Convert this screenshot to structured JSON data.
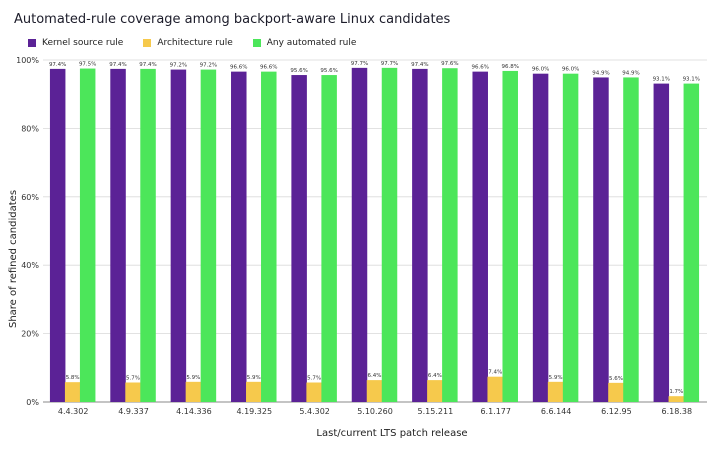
{
  "chart_data": {
    "type": "bar",
    "title": "Automated-rule coverage among backport-aware Linux candidates",
    "xlabel": "Last/current LTS patch release",
    "ylabel": "Share of refined candidates",
    "ylim": [
      0,
      100
    ],
    "yticks": [
      0,
      20,
      40,
      60,
      80,
      100
    ],
    "ytick_labels": [
      "0%",
      "20%",
      "40%",
      "60%",
      "80%",
      "100%"
    ],
    "grid": true,
    "legend_position": "top-left",
    "categories": [
      "4.4.302",
      "4.9.337",
      "4.14.336",
      "4.19.325",
      "5.4.302",
      "5.10.260",
      "5.15.211",
      "6.1.177",
      "6.6.144",
      "6.12.95",
      "6.18.38"
    ],
    "series": [
      {
        "name": "Kernel source rule",
        "color": "#5b2296",
        "values": [
          97.4,
          97.4,
          97.2,
          96.6,
          95.6,
          97.7,
          97.4,
          96.6,
          96.0,
          94.9,
          93.1
        ],
        "labels": [
          "97.4%",
          "97.4%",
          "97.2%",
          "96.6%",
          "95.6%",
          "97.7%",
          "97.4%",
          "96.6%",
          "96.0%",
          "94.9%",
          "93.1%"
        ]
      },
      {
        "name": "Architecture rule",
        "color": "#f6c94c",
        "values": [
          5.8,
          5.7,
          5.9,
          5.9,
          5.7,
          6.4,
          6.4,
          7.4,
          5.9,
          5.6,
          1.7
        ],
        "labels": [
          "5.8%",
          "5.7%",
          "5.9%",
          "5.9%",
          "5.7%",
          "6.4%",
          "6.4%",
          "7.4%",
          "5.9%",
          "5.6%",
          "1.7%"
        ]
      },
      {
        "name": "Any automated rule",
        "color": "#4ce65a",
        "values": [
          97.5,
          97.4,
          97.2,
          96.6,
          95.6,
          97.7,
          97.6,
          96.8,
          96.0,
          94.9,
          93.1
        ],
        "labels": [
          "97.5%",
          "97.4%",
          "97.2%",
          "96.6%",
          "95.6%",
          "97.7%",
          "97.6%",
          "96.8%",
          "96.0%",
          "94.9%",
          "93.1%"
        ]
      }
    ]
  }
}
